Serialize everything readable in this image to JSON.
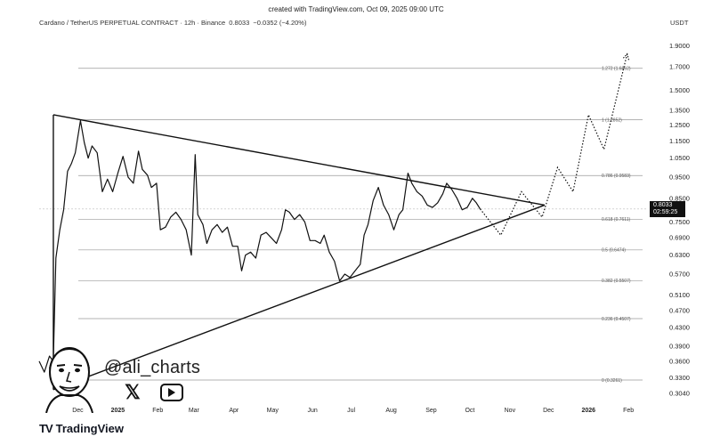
{
  "header": {
    "created": "created with TradingView.com, Oct 09, 2025 09:00 UTC",
    "symbol": "Cardano / TetherUS PERPETUAL CONTRACT · 12h · Binance",
    "last": "0.8033",
    "change": "−0.0352 (−4.20%)",
    "currency": "USDT"
  },
  "price_tag": {
    "price": "0.8033",
    "countdown": "02:59:25"
  },
  "branding": {
    "handle": "@ali_charts",
    "logo_text": "TradingView",
    "logo_mark": "TV",
    "x_icon": "x-icon",
    "video_icon": "play-icon"
  },
  "colors": {
    "line": "#111111",
    "fib": "#9a9a9a",
    "tag_bg": "#111111"
  },
  "chart_data": {
    "type": "line",
    "title": "Cardano / TetherUS PERPETUAL CONTRACT · 12h · Binance",
    "y_scale": "log",
    "ylim": [
      0.29,
      2.1
    ],
    "y_ticks": [
      "1.9000",
      "1.7000",
      "1.5000",
      "1.3500",
      "1.2500",
      "1.1500",
      "1.0500",
      "0.9500",
      "0.8500",
      "0.7500",
      "0.6900",
      "0.6300",
      "0.5700",
      "0.5100",
      "0.4700",
      "0.4300",
      "0.3900",
      "0.3600",
      "0.3300",
      "0.3040"
    ],
    "x_ticks": [
      {
        "label": "Dec",
        "date": "2024-12-01"
      },
      {
        "label": "2025",
        "date": "2025-01-01",
        "bold": true
      },
      {
        "label": "Feb",
        "date": "2025-02-01"
      },
      {
        "label": "Mar",
        "date": "2025-03-01"
      },
      {
        "label": "Apr",
        "date": "2025-04-01"
      },
      {
        "label": "May",
        "date": "2025-05-01"
      },
      {
        "label": "Jun",
        "date": "2025-06-01"
      },
      {
        "label": "Jul",
        "date": "2025-07-01"
      },
      {
        "label": "Aug",
        "date": "2025-08-01"
      },
      {
        "label": "Sep",
        "date": "2025-09-01"
      },
      {
        "label": "Oct",
        "date": "2025-10-01"
      },
      {
        "label": "Nov",
        "date": "2025-11-01"
      },
      {
        "label": "Dec",
        "date": "2025-12-01"
      },
      {
        "label": "2026",
        "date": "2026-01-01",
        "bold": true
      },
      {
        "label": "Feb",
        "date": "2026-02-01"
      }
    ],
    "fib_levels": [
      {
        "label": "1.272 (1.6862)",
        "value": 1.6862
      },
      {
        "label": "1 (1.2852)",
        "value": 1.2852
      },
      {
        "label": "0.786 (0.9583)",
        "value": 0.9583
      },
      {
        "label": "0.618 (0.7611)",
        "value": 0.7611
      },
      {
        "label": "0.5 (0.6474)",
        "value": 0.6474
      },
      {
        "label": "0.382 (0.5507)",
        "value": 0.5507
      },
      {
        "label": "0.236 (0.4507)",
        "value": 0.4507
      },
      {
        "label": "0 (0.3261)",
        "value": 0.3261
      }
    ],
    "price_series": [
      [
        "2024-11-01",
        0.36
      ],
      [
        "2024-11-05",
        0.34
      ],
      [
        "2024-11-09",
        0.37
      ],
      [
        "2024-11-12",
        0.36
      ],
      [
        "2024-11-14",
        0.62
      ],
      [
        "2024-11-17",
        0.72
      ],
      [
        "2024-11-20",
        0.8
      ],
      [
        "2024-11-23",
        0.98
      ],
      [
        "2024-11-26",
        1.02
      ],
      [
        "2024-11-29",
        1.08
      ],
      [
        "2024-12-03",
        1.28
      ],
      [
        "2024-12-06",
        1.14
      ],
      [
        "2024-12-09",
        1.05
      ],
      [
        "2024-12-12",
        1.12
      ],
      [
        "2024-12-16",
        1.08
      ],
      [
        "2024-12-20",
        0.88
      ],
      [
        "2024-12-24",
        0.94
      ],
      [
        "2024-12-28",
        0.88
      ],
      [
        "2025-01-01",
        0.97
      ],
      [
        "2025-01-05",
        1.06
      ],
      [
        "2025-01-09",
        0.95
      ],
      [
        "2025-01-13",
        0.92
      ],
      [
        "2025-01-17",
        1.09
      ],
      [
        "2025-01-20",
        0.99
      ],
      [
        "2025-01-24",
        0.96
      ],
      [
        "2025-01-27",
        0.9
      ],
      [
        "2025-01-31",
        0.92
      ],
      [
        "2025-02-03",
        0.72
      ],
      [
        "2025-02-07",
        0.73
      ],
      [
        "2025-02-11",
        0.77
      ],
      [
        "2025-02-15",
        0.79
      ],
      [
        "2025-02-19",
        0.76
      ],
      [
        "2025-02-23",
        0.72
      ],
      [
        "2025-02-27",
        0.63
      ],
      [
        "2025-03-02",
        1.07
      ],
      [
        "2025-03-04",
        0.78
      ],
      [
        "2025-03-08",
        0.74
      ],
      [
        "2025-03-11",
        0.67
      ],
      [
        "2025-03-15",
        0.72
      ],
      [
        "2025-03-19",
        0.74
      ],
      [
        "2025-03-23",
        0.71
      ],
      [
        "2025-03-27",
        0.73
      ],
      [
        "2025-03-31",
        0.66
      ],
      [
        "2025-04-04",
        0.66
      ],
      [
        "2025-04-07",
        0.58
      ],
      [
        "2025-04-10",
        0.63
      ],
      [
        "2025-04-14",
        0.64
      ],
      [
        "2025-04-18",
        0.62
      ],
      [
        "2025-04-22",
        0.7
      ],
      [
        "2025-04-26",
        0.71
      ],
      [
        "2025-04-30",
        0.69
      ],
      [
        "2025-05-04",
        0.67
      ],
      [
        "2025-05-08",
        0.72
      ],
      [
        "2025-05-11",
        0.8
      ],
      [
        "2025-05-14",
        0.79
      ],
      [
        "2025-05-18",
        0.76
      ],
      [
        "2025-05-22",
        0.78
      ],
      [
        "2025-05-26",
        0.75
      ],
      [
        "2025-05-30",
        0.68
      ],
      [
        "2025-06-03",
        0.68
      ],
      [
        "2025-06-07",
        0.67
      ],
      [
        "2025-06-10",
        0.7
      ],
      [
        "2025-06-14",
        0.64
      ],
      [
        "2025-06-18",
        0.61
      ],
      [
        "2025-06-22",
        0.55
      ],
      [
        "2025-06-26",
        0.57
      ],
      [
        "2025-06-30",
        0.56
      ],
      [
        "2025-07-04",
        0.58
      ],
      [
        "2025-07-08",
        0.6
      ],
      [
        "2025-07-11",
        0.7
      ],
      [
        "2025-07-14",
        0.74
      ],
      [
        "2025-07-18",
        0.84
      ],
      [
        "2025-07-22",
        0.9
      ],
      [
        "2025-07-26",
        0.82
      ],
      [
        "2025-07-30",
        0.78
      ],
      [
        "2025-08-03",
        0.72
      ],
      [
        "2025-08-07",
        0.78
      ],
      [
        "2025-08-10",
        0.8
      ],
      [
        "2025-08-14",
        0.97
      ],
      [
        "2025-08-17",
        0.92
      ],
      [
        "2025-08-21",
        0.88
      ],
      [
        "2025-08-25",
        0.86
      ],
      [
        "2025-08-29",
        0.82
      ],
      [
        "2025-09-02",
        0.81
      ],
      [
        "2025-09-06",
        0.83
      ],
      [
        "2025-09-10",
        0.87
      ],
      [
        "2025-09-13",
        0.92
      ],
      [
        "2025-09-17",
        0.89
      ],
      [
        "2025-09-21",
        0.85
      ],
      [
        "2025-09-25",
        0.8
      ],
      [
        "2025-09-29",
        0.81
      ],
      [
        "2025-10-03",
        0.85
      ],
      [
        "2025-10-06",
        0.83
      ],
      [
        "2025-10-09",
        0.8033
      ]
    ],
    "projection": [
      [
        "2025-10-09",
        0.8033
      ],
      [
        "2025-10-25",
        0.7
      ],
      [
        "2025-11-10",
        0.88
      ],
      [
        "2025-11-26",
        0.77
      ],
      [
        "2025-12-08",
        1.0
      ],
      [
        "2025-12-20",
        0.88
      ],
      [
        "2026-01-01",
        1.32
      ],
      [
        "2026-01-13",
        1.1
      ],
      [
        "2026-01-31",
        1.82
      ]
    ],
    "triangle": {
      "upper": [
        [
          "2024-11-12",
          1.32
        ],
        [
          "2025-11-28",
          0.82
        ]
      ],
      "lower": [
        [
          "2024-11-12",
          0.31
        ],
        [
          "2025-11-28",
          0.82
        ]
      ],
      "left_edge": [
        [
          "2024-11-12",
          0.31
        ],
        [
          "2024-11-12",
          1.32
        ]
      ]
    }
  }
}
